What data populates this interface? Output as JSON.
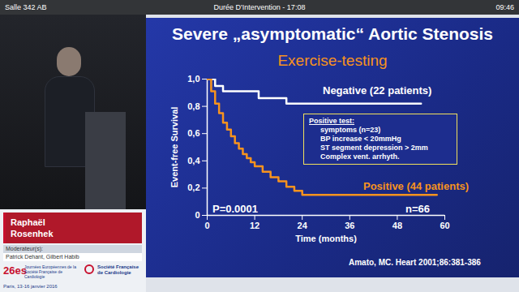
{
  "header": {
    "room": "Salle 342 AB",
    "duration": "Durée D'Intervention - 17:08",
    "clock": "09:46"
  },
  "speaker": {
    "first_name": "Raphaël",
    "last_name": "Rosenhek",
    "moderators_label": "Moderateur(s):",
    "moderators": "Patrick Dehant, Gilbert Habib"
  },
  "event": {
    "edition": "26es",
    "name": "Journées Européennes de la Société Française de Cardiologie",
    "place_date": "Paris, 13-16 janvier 2016",
    "society": "Société Française de Cardiologie"
  },
  "chart_data": {
    "type": "step",
    "title": "Severe „asymptomatic“ Aortic Stenosis",
    "subtitle": "Exercise-testing",
    "x_label": "Time (months)",
    "y_label": "Event-free Survival",
    "xlim": [
      0,
      60
    ],
    "xticks": [
      0,
      12,
      24,
      36,
      48,
      60
    ],
    "ylim": [
      0,
      1
    ],
    "yticks": [
      0,
      {
        "value": 0.2,
        "label": "0,2"
      },
      {
        "value": 0.4,
        "label": "0,4"
      },
      {
        "value": 0.6,
        "label": "0,6"
      },
      {
        "value": 0.8,
        "label": "0,8"
      },
      {
        "value": 1,
        "label": "1,0"
      }
    ],
    "series": [
      {
        "name": "Negative (22 patients)",
        "color": "#ffffff",
        "x": [
          0,
          2,
          4,
          13,
          20,
          54
        ],
        "values": [
          1,
          0.95,
          0.91,
          0.86,
          0.82,
          0.82
        ]
      },
      {
        "name": "Positive (44 patients)",
        "color": "#f7931e",
        "x": [
          0,
          1,
          2,
          3,
          4,
          5,
          6,
          7,
          8,
          9,
          10,
          11,
          12,
          14,
          16,
          18,
          20,
          22,
          24,
          58
        ],
        "values": [
          1,
          0.91,
          0.82,
          0.75,
          0.68,
          0.63,
          0.58,
          0.53,
          0.49,
          0.45,
          0.42,
          0.39,
          0.36,
          0.32,
          0.28,
          0.25,
          0.21,
          0.18,
          0.15,
          0.15
        ]
      }
    ],
    "annotations": {
      "box_title": "Positive test:",
      "box_lines": [
        "symptoms (n=23)",
        "BP increase < 20mmHg",
        "ST segment depression > 2mm",
        "Complex vent. arrhyth."
      ],
      "p_value": "P=0.0001",
      "n": "n=66",
      "source": "Amato, MC. Heart 2001;86:381-386"
    }
  }
}
